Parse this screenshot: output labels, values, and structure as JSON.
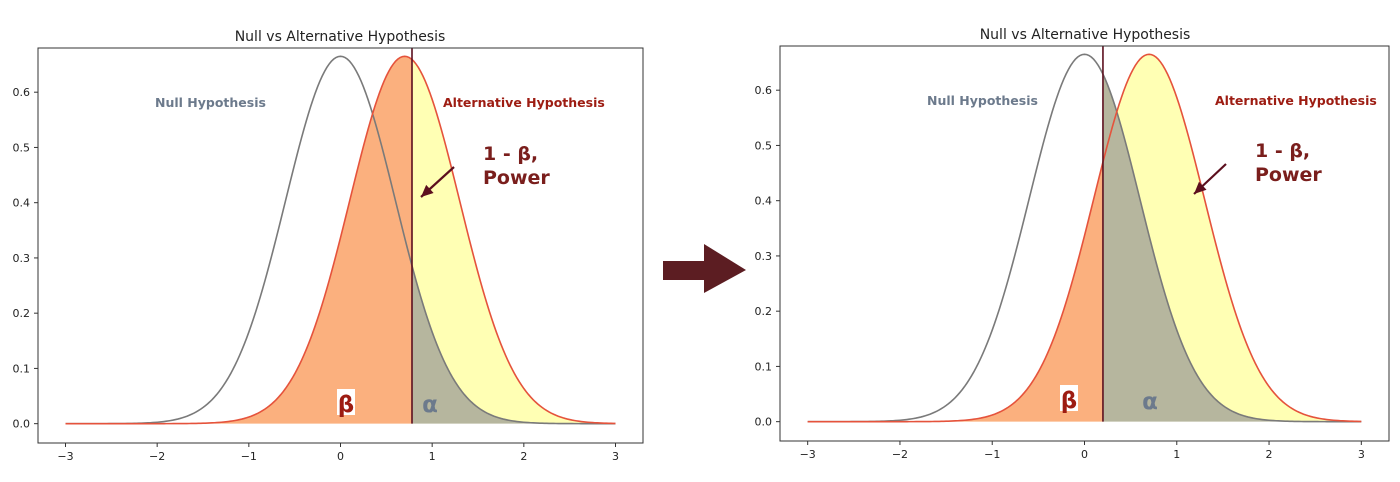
{
  "colors": {
    "null_curve": "#7a7a7a",
    "alt_curve": "#e5533c",
    "beta_fill": "#fbb07e",
    "power_fill": "#ffffb4",
    "alpha_fill": "#b6b69e",
    "critical_line": "#5c0f1e",
    "null_label": "#6c7a8c",
    "alt_label": "#9d1c12",
    "annotation": "#7a1e1c",
    "alpha_label": "#6c7a8c",
    "arrow": "#5c1d22",
    "frame": "#333333"
  },
  "arrow_between": {
    "icon": "right-arrow-icon"
  },
  "chart_data": [
    {
      "type": "line",
      "title": "Null vs Alternative Hypothesis",
      "xlabel": "",
      "ylabel": "",
      "xlim": [
        -3.3,
        3.3
      ],
      "ylim": [
        -0.035,
        0.68
      ],
      "x_ticks": [
        -3,
        -2,
        -1,
        0,
        1,
        2,
        3
      ],
      "y_ticks": [
        0.0,
        0.1,
        0.2,
        0.3,
        0.4,
        0.5,
        0.6
      ],
      "y_tick_labels": [
        "0.0",
        "0.1",
        "0.2",
        "0.3",
        "0.4",
        "0.5",
        "0.6"
      ],
      "grid": false,
      "x_range": [
        -3,
        3
      ],
      "series": [
        {
          "role": "null",
          "mean": 0.0,
          "sd": 0.6,
          "peak": 0.665
        },
        {
          "role": "alternative",
          "mean": 0.7,
          "sd": 0.6,
          "peak": 0.665
        }
      ],
      "critical_value": 0.78,
      "labels": {
        "null": "Null Hypothesis",
        "alternative": "Alternative Hypothesis",
        "power_line1": "1 - β,",
        "power_line2": "Power",
        "beta": "β",
        "alpha": "α"
      }
    },
    {
      "type": "line",
      "title": "Null vs Alternative Hypothesis",
      "xlabel": "",
      "ylabel": "",
      "xlim": [
        -3.3,
        3.3
      ],
      "ylim": [
        -0.035,
        0.68
      ],
      "x_ticks": [
        -3,
        -2,
        -1,
        0,
        1,
        2,
        3
      ],
      "y_ticks": [
        0.0,
        0.1,
        0.2,
        0.3,
        0.4,
        0.5,
        0.6
      ],
      "y_tick_labels": [
        "0.0",
        "0.1",
        "0.2",
        "0.3",
        "0.4",
        "0.5",
        "0.6"
      ],
      "grid": false,
      "x_range": [
        -3,
        3
      ],
      "series": [
        {
          "role": "null",
          "mean": 0.0,
          "sd": 0.6,
          "peak": 0.665
        },
        {
          "role": "alternative",
          "mean": 0.7,
          "sd": 0.6,
          "peak": 0.665
        }
      ],
      "critical_value": 0.2,
      "labels": {
        "null": "Null Hypothesis",
        "alternative": "Alternative Hypothesis",
        "power_line1": "1 - β,",
        "power_line2": "Power",
        "beta": "β",
        "alpha": "α"
      }
    }
  ]
}
